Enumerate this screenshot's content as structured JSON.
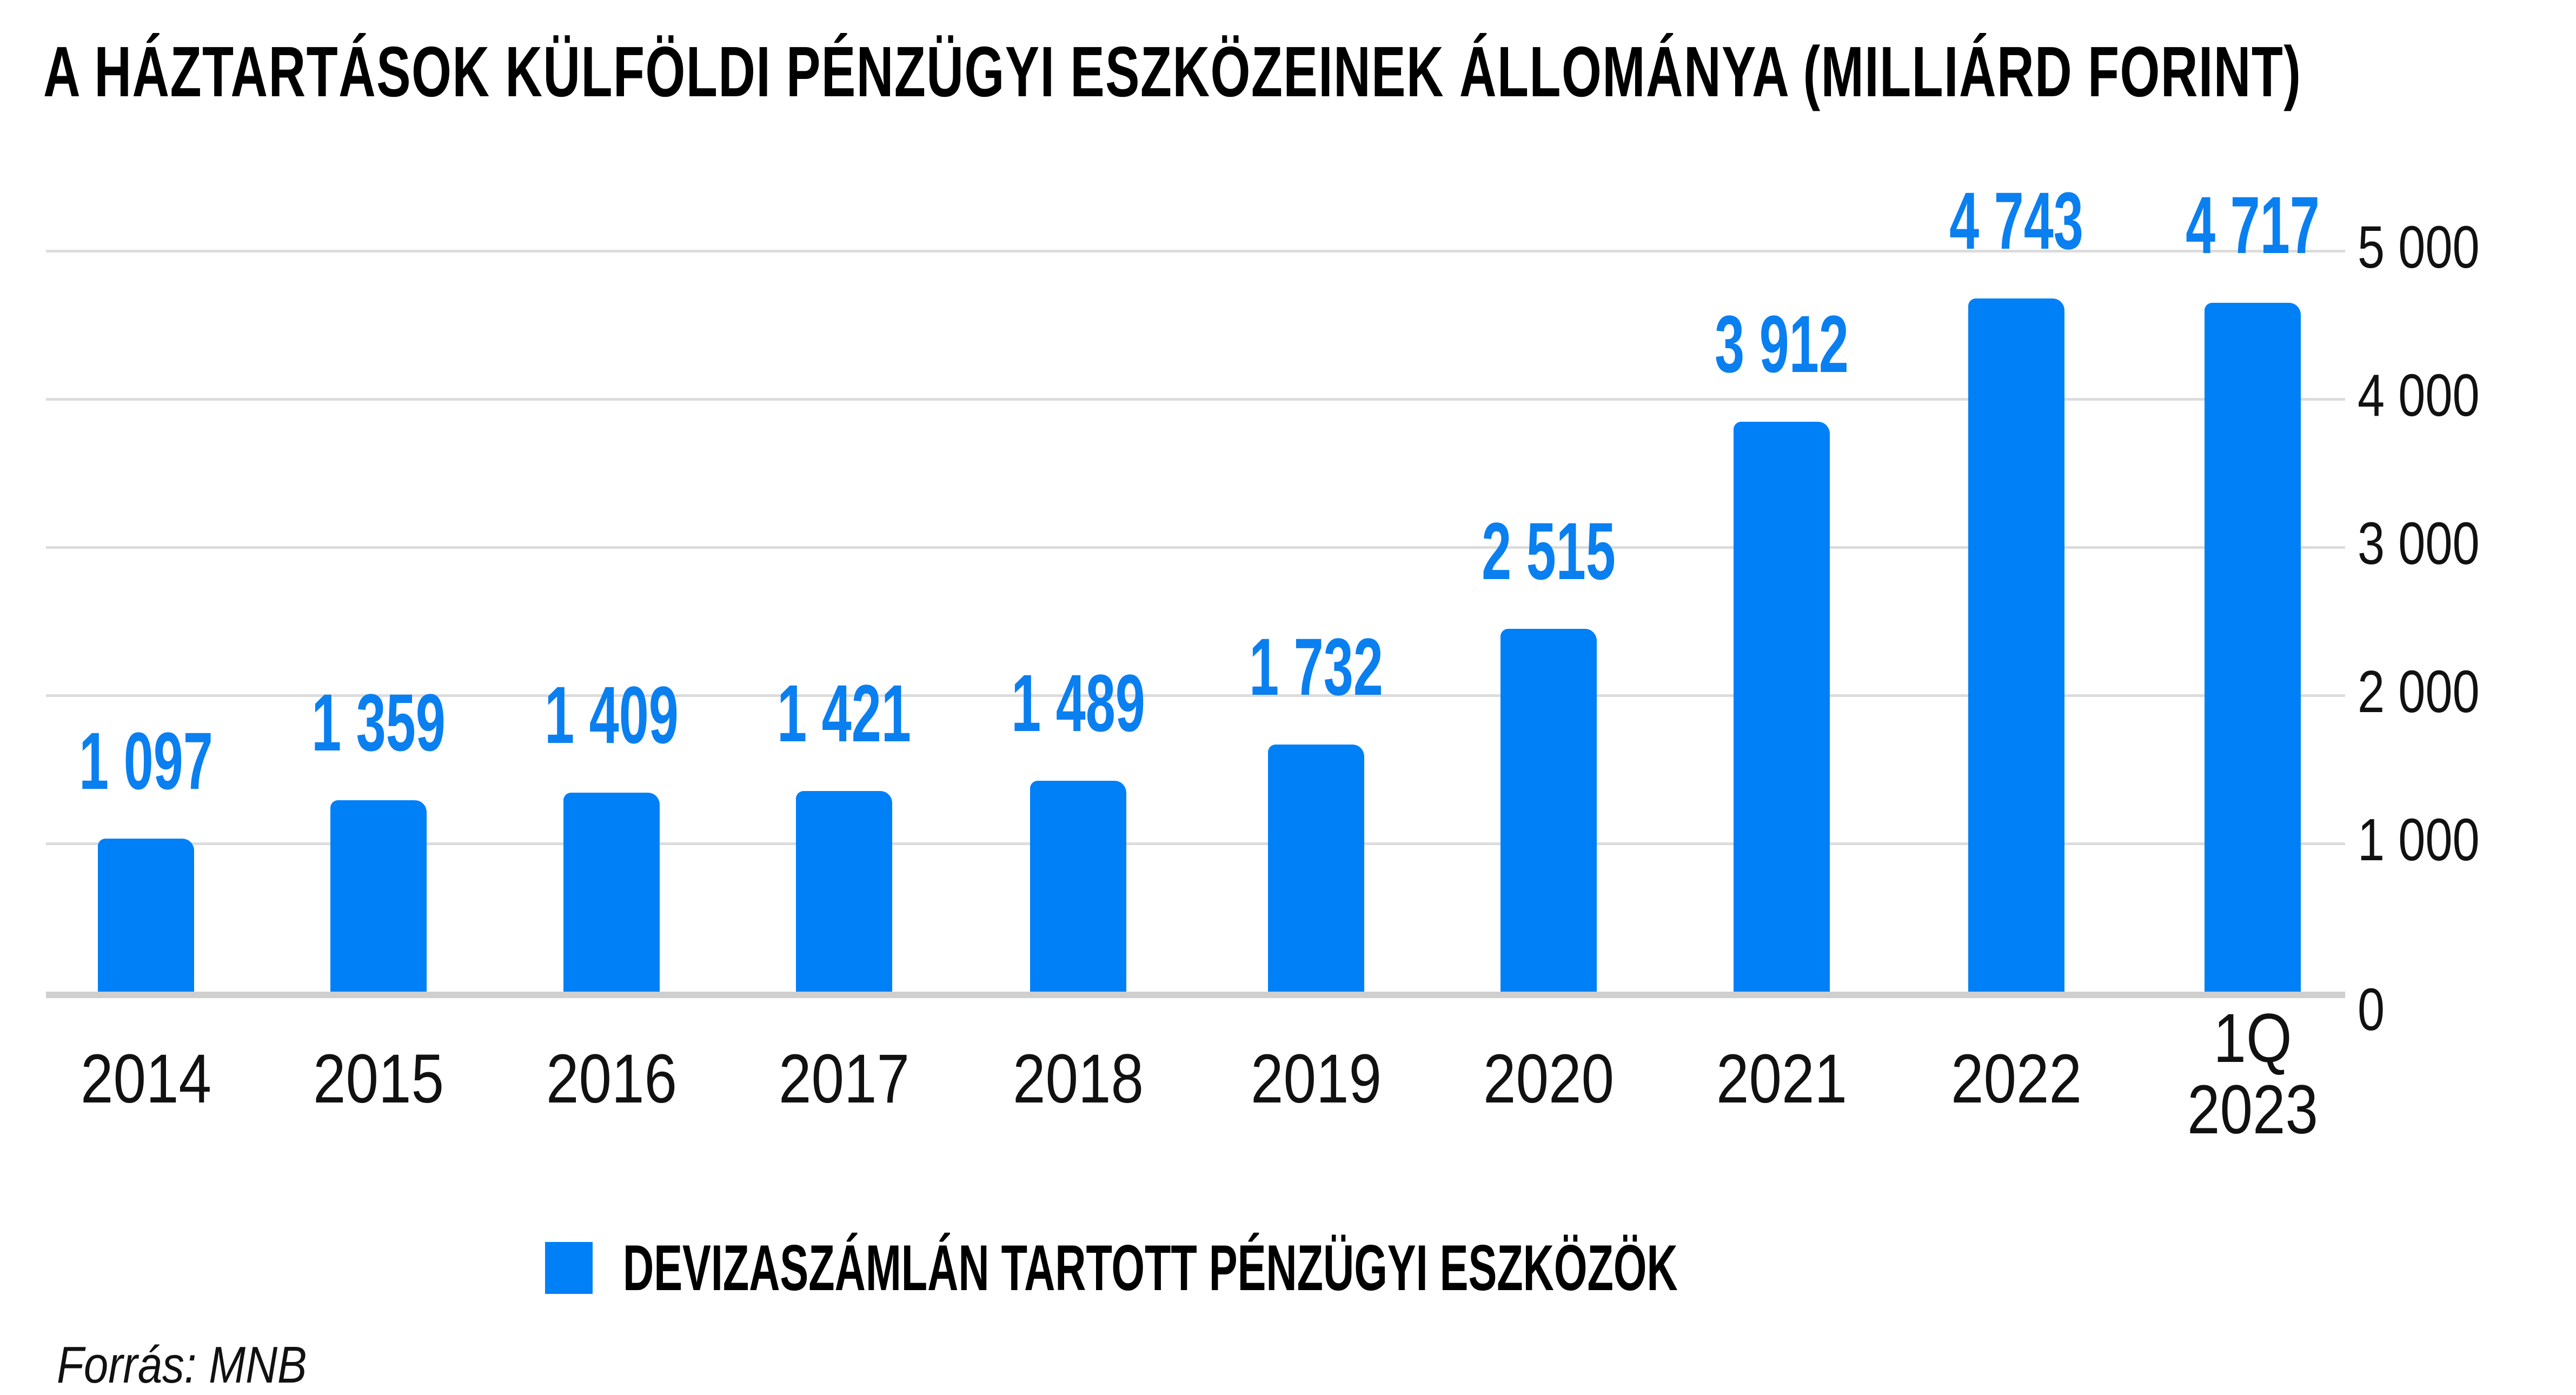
{
  "title": "A HÁZTARTÁSOK KÜLFÖLDI PÉNZÜGYI ESZKÖZEINEK ÁLLOMÁNYA (MILLIÁRD FORINT)",
  "legend": {
    "items": [
      {
        "label": "DEVIZASZÁMLÁN TARTOTT PÉNZÜGYI ESZKÖZÖK",
        "color": "#0080f6"
      }
    ]
  },
  "source": "Forrás: MNB",
  "y_axis": {
    "position": "right",
    "ticks": [
      "0",
      "1 000",
      "2 000",
      "3 000",
      "4 000",
      "5 000"
    ]
  },
  "bars": [
    {
      "category": "2014",
      "value_label": "1 097"
    },
    {
      "category": "2015",
      "value_label": "1 359"
    },
    {
      "category": "2016",
      "value_label": "1 409"
    },
    {
      "category": "2017",
      "value_label": "1 421"
    },
    {
      "category": "2018",
      "value_label": "1 489"
    },
    {
      "category": "2019",
      "value_label": "1 732"
    },
    {
      "category": "2020",
      "value_label": "2 515"
    },
    {
      "category": "2021",
      "value_label": "3 912"
    },
    {
      "category": "2022",
      "value_label": "4 743"
    },
    {
      "category": "1Q\n2023",
      "value_label": "4 717"
    }
  ],
  "colors": {
    "bar": "#0080f6",
    "value_label": "#0a7ff0",
    "gridline": "#dcdcdc",
    "baseline": "#cfcfcf"
  },
  "chart_data": {
    "type": "bar",
    "title": "A HÁZTARTÁSOK KÜLFÖLDI PÉNZÜGYI ESZKÖZEINEK ÁLLOMÁNYA (MILLIÁRD FORINT)",
    "categories": [
      "2014",
      "2015",
      "2016",
      "2017",
      "2018",
      "2019",
      "2020",
      "2021",
      "2022",
      "1Q 2023"
    ],
    "series": [
      {
        "name": "DEVIZASZÁMLÁN TARTOTT PÉNZÜGYI ESZKÖZÖK",
        "values": [
          1097,
          1359,
          1409,
          1421,
          1489,
          1732,
          2515,
          3912,
          4743,
          4717
        ],
        "color": "#0080f6"
      }
    ],
    "xlabel": "",
    "ylabel": "",
    "ylim": [
      0,
      5000
    ],
    "yticks": [
      0,
      1000,
      2000,
      3000,
      4000,
      5000
    ],
    "y_axis_position": "right",
    "grid": true,
    "data_labels": true,
    "legend_position": "bottom",
    "annotations": [
      "Forrás: MNB"
    ]
  }
}
